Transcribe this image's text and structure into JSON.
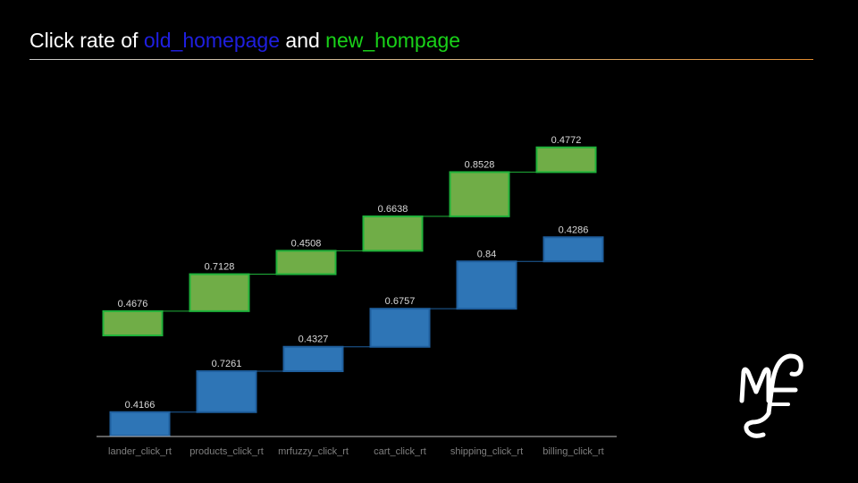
{
  "slide": {
    "title_prefix": "Click rate of ",
    "title_old": "old_homepage",
    "title_mid": " and ",
    "title_new": "new_hompage",
    "logo_text": "MF"
  },
  "colors": {
    "old_series": "#2e75b6",
    "new_series": "#70ad47",
    "title_old": "#1f1fe0",
    "title_new": "#19d219",
    "background": "#000000"
  },
  "chart_data": {
    "type": "bar",
    "subtype": "waterfall",
    "categories": [
      "lander_click_rt",
      "products_click_rt",
      "mrfuzzy_click_rt",
      "cart_click_rt",
      "shipping_click_rt",
      "billing_click_rt"
    ],
    "series": [
      {
        "name": "old_homepage",
        "values": [
          0.4166,
          0.7261,
          0.4327,
          0.6757,
          0.84,
          0.4286
        ],
        "labels": [
          "0.4166",
          "0.7261",
          "0.4327",
          "0.6757",
          "0.84",
          "0.4286"
        ]
      },
      {
        "name": "new_hompage",
        "values": [
          0.4676,
          0.7128,
          0.4508,
          0.6638,
          0.8528,
          0.4772
        ],
        "labels": [
          "0.4676",
          "0.7128",
          "0.4508",
          "0.6638",
          "0.8528",
          "0.4772"
        ]
      }
    ],
    "grid": false
  }
}
